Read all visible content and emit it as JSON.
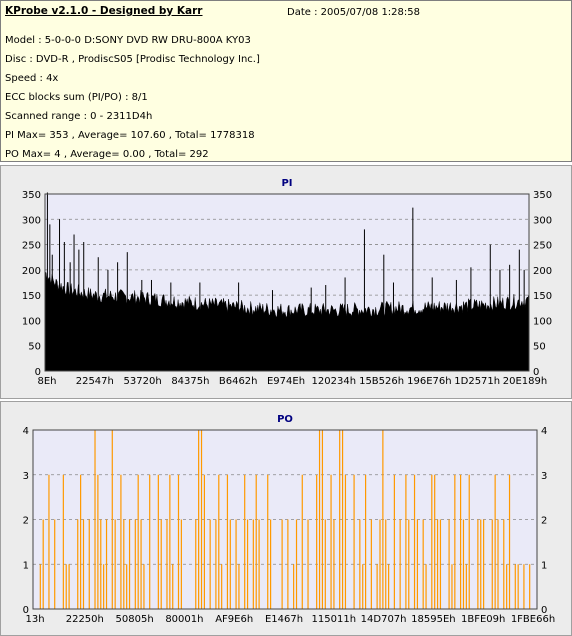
{
  "info": {
    "title": "KProbe v2.1.0 - Designed by Karr",
    "date": "Date : 2005/07/08 1:28:58",
    "lines": [
      "Model : 5-0-0-0 D:SONY    DVD RW DRU-800A  KY03",
      "Disc : DVD-R , ProdiscS05   [Prodisc Technology Inc.]",
      "Speed : 4x",
      "ECC blocks sum (PI/PO) : 8/1",
      "Scanned range : 0 - 2311D4h",
      "PI Max= 353 , Average= 107.60 , Total= 1778318",
      "PO Max= 4 , Average= 0.00 , Total= 292"
    ]
  },
  "chart_data": [
    {
      "type": "area",
      "title": "PI",
      "ylim": [
        0,
        350
      ],
      "yticks": [
        0,
        50,
        100,
        150,
        200,
        250,
        300,
        350
      ],
      "xticklabels": [
        "8Eh",
        "22547h",
        "53720h",
        "84375h",
        "B6462h",
        "E974Eh",
        "120234h",
        "15B526h",
        "196E76h",
        "1D2571h",
        "20E189h"
      ],
      "grid": true,
      "color": "#000000",
      "baseline_profile": [
        [
          0,
          195
        ],
        [
          2,
          175
        ],
        [
          5,
          160
        ],
        [
          10,
          150
        ],
        [
          20,
          145
        ],
        [
          30,
          135
        ],
        [
          38,
          128
        ],
        [
          42,
          124
        ],
        [
          50,
          120
        ],
        [
          60,
          120
        ],
        [
          70,
          123
        ],
        [
          80,
          126
        ],
        [
          90,
          130
        ],
        [
          95,
          135
        ],
        [
          100,
          140
        ]
      ],
      "spikes": [
        [
          0.5,
          353
        ],
        [
          1,
          290
        ],
        [
          1.5,
          230
        ],
        [
          3,
          300
        ],
        [
          4,
          255
        ],
        [
          5.2,
          215
        ],
        [
          6,
          270
        ],
        [
          7,
          240
        ],
        [
          8,
          255
        ],
        [
          11,
          225
        ],
        [
          13,
          200
        ],
        [
          15,
          215
        ],
        [
          17,
          235
        ],
        [
          20,
          180
        ],
        [
          22,
          180
        ],
        [
          26,
          175
        ],
        [
          32,
          175
        ],
        [
          40,
          175
        ],
        [
          47,
          160
        ],
        [
          55,
          165
        ],
        [
          58,
          170
        ],
        [
          62,
          185
        ],
        [
          66,
          280
        ],
        [
          70,
          230
        ],
        [
          72,
          175
        ],
        [
          76,
          323
        ],
        [
          80,
          185
        ],
        [
          85,
          180
        ],
        [
          88,
          205
        ],
        [
          92,
          250
        ],
        [
          94,
          200
        ],
        [
          96,
          210
        ],
        [
          98,
          240
        ],
        [
          99,
          200
        ]
      ]
    },
    {
      "type": "bar",
      "title": "PO",
      "ylim": [
        0,
        4
      ],
      "yticks": [
        0,
        1,
        2,
        3,
        4
      ],
      "xticklabels": [
        "13h",
        "22250h",
        "50805h",
        "80001h",
        "AF9E6h",
        "E1467h",
        "115011h",
        "14D707h",
        "18595Eh",
        "1BFE09h",
        "1FBE66h"
      ],
      "grid": true,
      "color": "#ff9900",
      "values": [
        0,
        1,
        2,
        0,
        3,
        0,
        2,
        0,
        0,
        3,
        1,
        1,
        0,
        0,
        2,
        3,
        2,
        0,
        2,
        0,
        4,
        3,
        2,
        1,
        2,
        0,
        4,
        2,
        0,
        3,
        2,
        1,
        2,
        0,
        2,
        3,
        2,
        1,
        0,
        3,
        0,
        0,
        3,
        2,
        0,
        2,
        3,
        1,
        0,
        3,
        2,
        0,
        0,
        0,
        0,
        2,
        4,
        4,
        3,
        0,
        2,
        0,
        2,
        3,
        1,
        0,
        3,
        2,
        0,
        2,
        1,
        0,
        3,
        2,
        0,
        2,
        3,
        2,
        0,
        0,
        3,
        2,
        0,
        0,
        0,
        2,
        0,
        2,
        0,
        1,
        2,
        0,
        3,
        0,
        2,
        0,
        0,
        3,
        4,
        4,
        2,
        0,
        3,
        2,
        0,
        4,
        4,
        3,
        0,
        0,
        3,
        0,
        2,
        1,
        3,
        0,
        2,
        0,
        1,
        2,
        4,
        2,
        1,
        0,
        3,
        0,
        2,
        0,
        3,
        2,
        0,
        3,
        2,
        0,
        2,
        1,
        0,
        3,
        3,
        2,
        2,
        0,
        0,
        2,
        1,
        3,
        0,
        3,
        2,
        1,
        3,
        0,
        0,
        2,
        2,
        2,
        0,
        0,
        2,
        3,
        2,
        0,
        2,
        1,
        3,
        0,
        1,
        1,
        0,
        1,
        0,
        1,
        0
      ]
    }
  ]
}
